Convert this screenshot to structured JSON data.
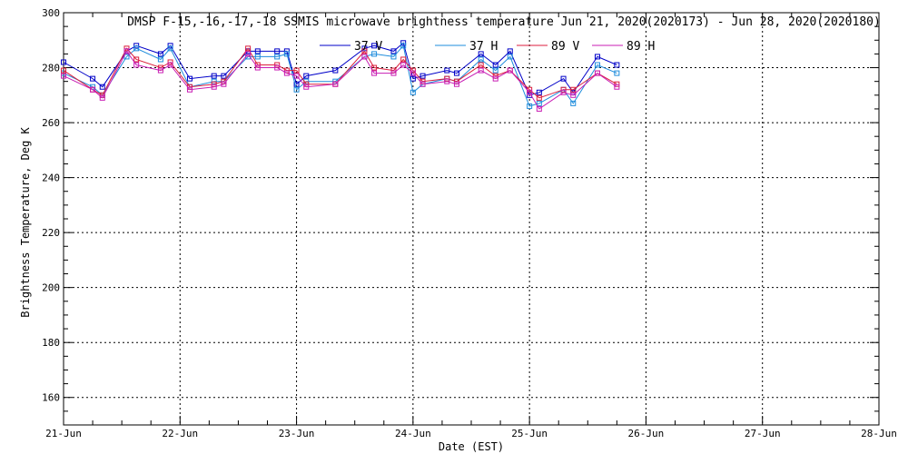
{
  "chart_data": {
    "type": "line",
    "title": "DMSP F-15,-16,-17,-18 SSMIS microwave brightness temperature Jun 21, 2020(2020173) - Jun 28, 2020(2020180)",
    "xlabel": "Date (EST)",
    "ylabel": "Brightness Temperature, Deg K",
    "xlim": [
      "2020-06-21T00:00",
      "2020-06-28T00:00"
    ],
    "ylim": [
      150,
      300
    ],
    "x_tick_labels": [
      "21-Jun",
      "22-Jun",
      "23-Jun",
      "24-Jun",
      "25-Jun",
      "26-Jun",
      "27-Jun",
      "28-Jun"
    ],
    "y_tick_labels": [
      "160",
      "180",
      "200",
      "220",
      "240",
      "260",
      "280",
      "300"
    ],
    "grid": true,
    "legend_position": "top",
    "x": [
      "2020-06-21T00:00",
      "2020-06-21T06:00",
      "2020-06-21T08:00",
      "2020-06-21T13:00",
      "2020-06-21T15:00",
      "2020-06-21T20:00",
      "2020-06-21T22:00",
      "2020-06-22T02:00",
      "2020-06-22T07:00",
      "2020-06-22T09:00",
      "2020-06-22T14:00",
      "2020-06-22T16:00",
      "2020-06-22T20:00",
      "2020-06-22T22:00",
      "2020-06-23T00:00",
      "2020-06-23T02:00",
      "2020-06-23T08:00",
      "2020-06-23T14:00",
      "2020-06-23T16:00",
      "2020-06-23T20:00",
      "2020-06-23T22:00",
      "2020-06-24T00:00",
      "2020-06-24T02:00",
      "2020-06-24T07:00",
      "2020-06-24T09:00",
      "2020-06-24T14:00",
      "2020-06-24T17:00",
      "2020-06-24T20:00",
      "2020-06-25T00:00",
      "2020-06-25T02:00",
      "2020-06-25T07:00",
      "2020-06-25T09:00",
      "2020-06-25T14:00",
      "2020-06-25T18:00"
    ],
    "series": [
      {
        "name": "37 V",
        "color": "#0000c8",
        "values": [
          282,
          276,
          273,
          286,
          288,
          285,
          288,
          276,
          277,
          277,
          286,
          286,
          286,
          286,
          274,
          277,
          279,
          287,
          288,
          286,
          289,
          276,
          277,
          279,
          278,
          285,
          281,
          286,
          270,
          271,
          276,
          271,
          284,
          281
        ]
      },
      {
        "name": "37 H",
        "color": "#1e8cdc",
        "values": [
          278,
          273,
          270,
          284,
          287,
          283,
          287,
          273,
          275,
          275,
          284,
          284,
          284,
          285,
          272,
          275,
          275,
          284,
          285,
          284,
          288,
          271,
          274,
          276,
          275,
          283,
          279,
          284,
          266,
          267,
          272,
          267,
          281,
          278
        ]
      },
      {
        "name": "89 V",
        "color": "#dc1e3c",
        "values": [
          279,
          272,
          270,
          287,
          283,
          280,
          282,
          273,
          274,
          275,
          287,
          281,
          281,
          279,
          279,
          274,
          274,
          286,
          280,
          279,
          283,
          279,
          275,
          276,
          275,
          281,
          277,
          279,
          272,
          269,
          272,
          272,
          278,
          274
        ]
      },
      {
        "name": "89 H",
        "color": "#c81eb4",
        "values": [
          277,
          272,
          269,
          286,
          281,
          279,
          281,
          272,
          273,
          274,
          285,
          280,
          280,
          278,
          277,
          273,
          274,
          284,
          278,
          278,
          281,
          278,
          274,
          275,
          274,
          279,
          276,
          279,
          271,
          265,
          271,
          270,
          278,
          273
        ]
      }
    ]
  }
}
